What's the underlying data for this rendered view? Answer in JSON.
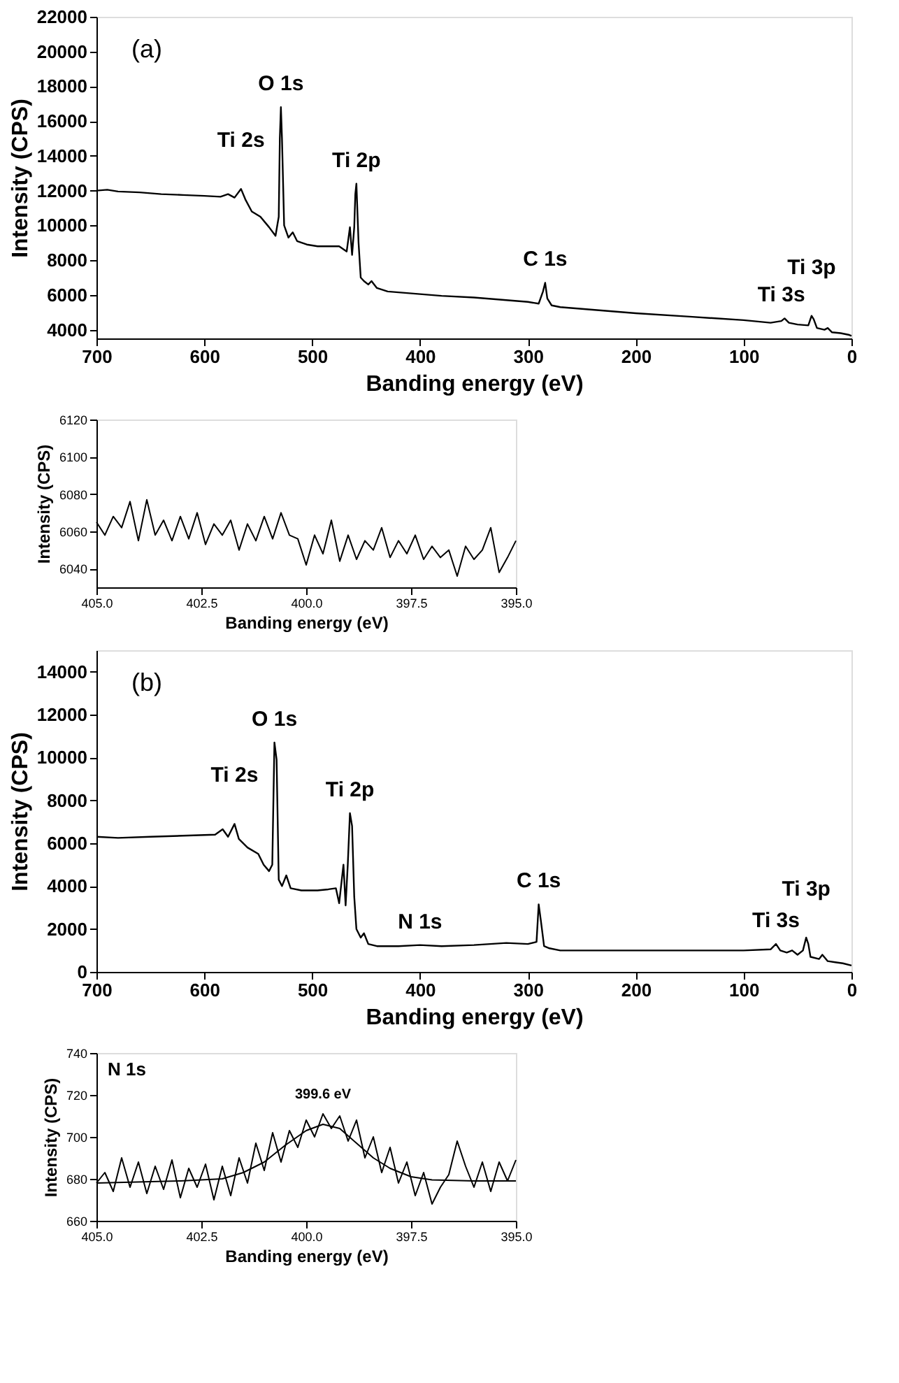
{
  "chart_data": [
    {
      "type": "line",
      "xlabel": "Banding energy (eV)",
      "ylabel": "Intensity (CPS)",
      "xlim": [
        700,
        0
      ],
      "ylim": [
        3500,
        22000
      ],
      "xticks": [
        700,
        600,
        500,
        400,
        300,
        200,
        100,
        0
      ],
      "yticks": [
        4000,
        6000,
        8000,
        10000,
        12000,
        14000,
        16000,
        18000,
        20000,
        22000
      ],
      "grid": false,
      "marker": "none",
      "line_style": "solid",
      "annotations": [
        "(a)",
        {
          "text": "O 1s",
          "x": 529,
          "y": 16800
        },
        {
          "text": "Ti 2s",
          "x": 566,
          "y": 12100
        },
        {
          "text": "Ti 2p",
          "x": 459,
          "y": 12400
        },
        {
          "text": "C 1s",
          "x": 284,
          "y": 6700
        },
        {
          "text": "Ti 3s",
          "x": 65,
          "y": 4650
        },
        {
          "text": "Ti 3p",
          "x": 37,
          "y": 4800
        }
      ],
      "series": [
        {
          "color": "#000000",
          "x": [
            700,
            690,
            680,
            660,
            640,
            620,
            600,
            585,
            578,
            572,
            566,
            562,
            556,
            548,
            540,
            534,
            531,
            530,
            529,
            528,
            526,
            522,
            518,
            514,
            505,
            495,
            485,
            475,
            468,
            465,
            463,
            461,
            460,
            459,
            457,
            455,
            452,
            448,
            445,
            440,
            430,
            420,
            400,
            380,
            350,
            320,
            300,
            290,
            286,
            284,
            282,
            278,
            270,
            250,
            200,
            150,
            100,
            75,
            65,
            62,
            58,
            50,
            40,
            37,
            35,
            32,
            25,
            22,
            18,
            10,
            2,
            0
          ],
          "values": [
            12000,
            12050,
            11950,
            11900,
            11800,
            11750,
            11700,
            11650,
            11800,
            11600,
            12100,
            11500,
            10800,
            10500,
            9900,
            9400,
            10500,
            15000,
            16800,
            15000,
            10000,
            9300,
            9600,
            9100,
            8900,
            8800,
            8800,
            8800,
            8500,
            9900,
            8300,
            9900,
            11800,
            12400,
            9000,
            7000,
            6800,
            6600,
            6800,
            6400,
            6200,
            6150,
            6050,
            5950,
            5850,
            5700,
            5600,
            5500,
            6200,
            6700,
            5800,
            5400,
            5300,
            5200,
            4950,
            4750,
            4550,
            4400,
            4500,
            4650,
            4400,
            4300,
            4250,
            4800,
            4600,
            4100,
            4000,
            4100,
            3850,
            3800,
            3700,
            3650
          ]
        }
      ]
    },
    {
      "type": "line",
      "xlabel": "Banding energy (eV)",
      "ylabel": "Intensity (CPS)",
      "xlim": [
        405,
        395
      ],
      "ylim": [
        6030,
        6120
      ],
      "xticks": [
        {
          "value": 405,
          "label": "405.0"
        },
        {
          "value": 402.5,
          "label": "402.5"
        },
        {
          "value": 400,
          "label": "400.0"
        },
        {
          "value": 397.5,
          "label": "397.5"
        },
        {
          "value": 395,
          "label": "395.0"
        }
      ],
      "yticks": [
        6040,
        6060,
        6080,
        6100,
        6120
      ],
      "grid": false,
      "marker": "none",
      "line_style": "solid",
      "series": [
        {
          "color": "#000000",
          "x": [
            405,
            404.8,
            404.6,
            404.4,
            404.2,
            404,
            403.8,
            403.6,
            403.4,
            403.2,
            403,
            402.8,
            402.6,
            402.4,
            402.2,
            402,
            401.8,
            401.6,
            401.4,
            401.2,
            401,
            400.8,
            400.6,
            400.4,
            400.2,
            400,
            399.8,
            399.6,
            399.4,
            399.2,
            399,
            398.8,
            398.6,
            398.4,
            398.2,
            398,
            397.8,
            397.6,
            397.4,
            397.2,
            397,
            396.8,
            396.6,
            396.4,
            396.2,
            396,
            395.8,
            395.6,
            395.4,
            395.2,
            395
          ],
          "values": [
            6065,
            6058,
            6068,
            6062,
            6076,
            6055,
            6077,
            6058,
            6066,
            6055,
            6068,
            6056,
            6070,
            6053,
            6064,
            6058,
            6066,
            6050,
            6064,
            6055,
            6068,
            6056,
            6070,
            6058,
            6056,
            6042,
            6058,
            6048,
            6066,
            6044,
            6058,
            6045,
            6055,
            6050,
            6062,
            6046,
            6055,
            6048,
            6058,
            6045,
            6052,
            6046,
            6050,
            6036,
            6052,
            6045,
            6050,
            6062,
            6038,
            6046,
            6055
          ]
        }
      ]
    },
    {
      "type": "line",
      "xlabel": "Banding energy (eV)",
      "ylabel": "Intensity (CPS)",
      "xlim": [
        700,
        0
      ],
      "ylim": [
        0,
        15000
      ],
      "xticks": [
        700,
        600,
        500,
        400,
        300,
        200,
        100,
        0
      ],
      "yticks": [
        0,
        2000,
        4000,
        6000,
        8000,
        10000,
        12000,
        14000
      ],
      "grid": false,
      "marker": "none",
      "line_style": "solid",
      "annotations": [
        "(b)",
        {
          "text": "O 1s",
          "x": 535,
          "y": 10700
        },
        {
          "text": "Ti 2s",
          "x": 572,
          "y": 6900
        },
        {
          "text": "Ti 2p",
          "x": 465,
          "y": 7400
        },
        {
          "text": "N 1s",
          "x": 400,
          "y": 1250
        },
        {
          "text": "C 1s",
          "x": 290,
          "y": 3150
        },
        {
          "text": "Ti 3s",
          "x": 70,
          "y": 1300
        },
        {
          "text": "Ti 3p",
          "x": 42,
          "y": 1600
        }
      ],
      "series": [
        {
          "color": "#000000",
          "x": [
            700,
            680,
            650,
            620,
            590,
            583,
            578,
            572,
            568,
            560,
            550,
            545,
            540,
            537,
            535,
            533,
            531,
            528,
            524,
            520,
            510,
            495,
            485,
            478,
            475,
            471,
            469,
            467,
            465,
            463,
            461,
            459,
            455,
            452,
            448,
            440,
            420,
            400,
            380,
            350,
            320,
            300,
            292,
            290,
            288,
            285,
            280,
            270,
            250,
            200,
            150,
            100,
            75,
            70,
            66,
            60,
            55,
            50,
            45,
            42,
            40,
            38,
            30,
            27,
            22,
            15,
            8,
            0
          ],
          "values": [
            6300,
            6250,
            6300,
            6350,
            6400,
            6650,
            6300,
            6900,
            6200,
            5800,
            5500,
            5000,
            4700,
            5000,
            10700,
            9900,
            4300,
            4000,
            4500,
            3900,
            3800,
            3800,
            3850,
            3900,
            3200,
            5000,
            3100,
            5000,
            7400,
            6800,
            3500,
            2000,
            1600,
            1800,
            1300,
            1200,
            1200,
            1250,
            1200,
            1250,
            1350,
            1300,
            1400,
            3150,
            2400,
            1200,
            1100,
            1000,
            1000,
            1000,
            1000,
            1000,
            1050,
            1300,
            1000,
            900,
            1000,
            800,
            1000,
            1600,
            1300,
            700,
            600,
            800,
            500,
            450,
            400,
            300
          ]
        }
      ]
    },
    {
      "type": "line",
      "xlabel": "Banding energy (eV)",
      "ylabel": "Intensity (CPS)",
      "xlim": [
        405,
        395
      ],
      "ylim": [
        660,
        740
      ],
      "xticks": [
        {
          "value": 405,
          "label": "405.0"
        },
        {
          "value": 402.5,
          "label": "402.5"
        },
        {
          "value": 400,
          "label": "400.0"
        },
        {
          "value": 397.5,
          "label": "397.5"
        },
        {
          "value": 395,
          "label": "395.0"
        }
      ],
      "yticks": [
        660,
        680,
        700,
        720,
        740
      ],
      "grid": false,
      "marker": "none",
      "line_style": "solid",
      "annotations": [
        "N 1s",
        {
          "text": "399.6 eV",
          "x": 399.6,
          "y": 711
        }
      ],
      "series": [
        {
          "color": "#000000",
          "x": [
            405,
            404.8,
            404.6,
            404.4,
            404.2,
            404,
            403.8,
            403.6,
            403.4,
            403.2,
            403,
            402.8,
            402.6,
            402.4,
            402.2,
            402,
            401.8,
            401.6,
            401.4,
            401.2,
            401,
            400.8,
            400.6,
            400.4,
            400.2,
            400,
            399.8,
            399.6,
            399.4,
            399.2,
            399,
            398.8,
            398.6,
            398.4,
            398.2,
            398,
            397.8,
            397.6,
            397.4,
            397.2,
            397,
            396.8,
            396.6,
            396.4,
            396.2,
            396,
            395.8,
            395.6,
            395.4,
            395.2,
            395
          ],
          "values": [
            678,
            683,
            674,
            690,
            676,
            688,
            673,
            686,
            675,
            689,
            671,
            685,
            676,
            687,
            670,
            686,
            672,
            690,
            678,
            697,
            684,
            702,
            688,
            703,
            695,
            708,
            700,
            711,
            704,
            710,
            698,
            708,
            690,
            700,
            683,
            695,
            678,
            688,
            672,
            683,
            668,
            676,
            682,
            698,
            686,
            676,
            688,
            674,
            688,
            679,
            689
          ]
        },
        {
          "color": "#000000",
          "x": [
            405,
            403,
            402,
            401.5,
            401,
            400.5,
            400,
            399.6,
            399.2,
            398.8,
            398.4,
            398,
            397.5,
            397,
            396,
            395
          ],
          "values": [
            678,
            679,
            680,
            683,
            688,
            696,
            703,
            706,
            704,
            697,
            690,
            685,
            681,
            679.5,
            679,
            679
          ]
        }
      ]
    }
  ]
}
